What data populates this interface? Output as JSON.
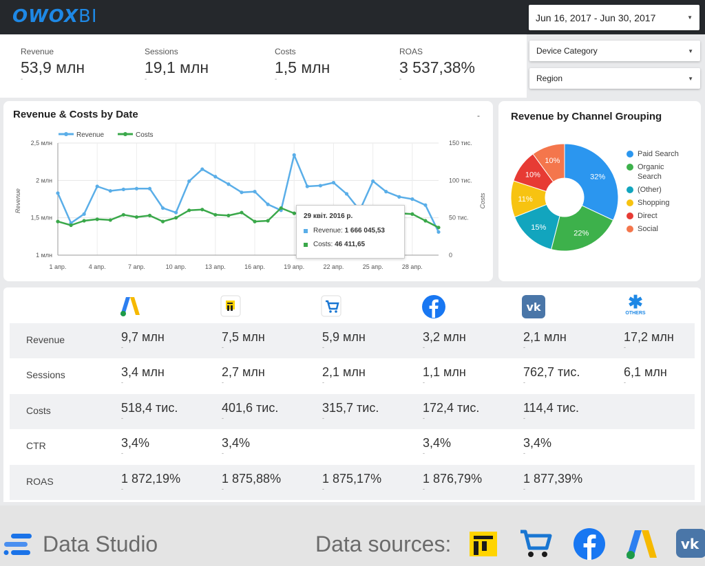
{
  "brand": {
    "name_part1": "OWOX",
    "name_part2": "BI"
  },
  "date_range": {
    "value": "Jun 16, 2017 - Jun 30, 2017"
  },
  "filters": {
    "device_category": "Device Category",
    "region": "Region"
  },
  "kpis": [
    {
      "label": "Revenue",
      "value": "53,9 млн",
      "delta": "-"
    },
    {
      "label": "Sessions",
      "value": "19,1 млн",
      "delta": "-"
    },
    {
      "label": "Costs",
      "value": "1,5 млн",
      "delta": "-"
    },
    {
      "label": "ROAS",
      "value": "3 537,38%",
      "delta": "-"
    }
  ],
  "line_chart": {
    "title": "Revenue & Costs by Date",
    "menu": "-",
    "legend": [
      "Revenue",
      "Costs"
    ],
    "ylabel_left": "Revenue",
    "ylabel_right": "Costs",
    "left_ticks": [
      "2,5 млн",
      "2 млн",
      "1,5 млн",
      "1 млн"
    ],
    "right_ticks": [
      "150 тис.",
      "100 тис.",
      "50 тис.",
      "0"
    ],
    "x_ticks": [
      "1 апр.",
      "4 апр.",
      "7 апр.",
      "10 апр.",
      "13 апр.",
      "16 апр.",
      "19 апр.",
      "22 апр.",
      "25 апр.",
      "28 апр."
    ],
    "tooltip": {
      "date": "29 квіт. 2016 р.",
      "revenue_label": "Revenue: ",
      "revenue_value": "1 666 045,53",
      "costs_label": "Costs: ",
      "costs_value": "46 411,65"
    }
  },
  "pie_chart": {
    "title": "Revenue by Channel Grouping",
    "legend": [
      "Paid Search",
      "Organic Search",
      "(Other)",
      "Shopping",
      "Direct",
      "Social"
    ]
  },
  "table": {
    "row_labels": [
      "Revenue",
      "Sessions",
      "Costs",
      "CTR",
      "ROAS"
    ],
    "channel_icons": [
      "google-ads-icon",
      "yandex-market-icon",
      "shopping-cart-icon",
      "facebook-icon",
      "vk-icon",
      "others-icon"
    ],
    "others_label": "OTHERS",
    "values": [
      [
        "9,7 млн",
        "7,5 млн",
        "5,9 млн",
        "3,2 млн",
        "2,1 млн",
        "17,2 млн"
      ],
      [
        "3,4 млн",
        "2,7 млн",
        "2,1 млн",
        "1,1 млн",
        "762,7 тис.",
        "6,1 млн"
      ],
      [
        "518,4 тис.",
        "401,6 тис.",
        "315,7 тис.",
        "172,4 тис.",
        "114,4 тис.",
        ""
      ],
      [
        "3,4%",
        "3,4%",
        "",
        "3,4%",
        "3,4%",
        ""
      ],
      [
        "1 872,19%",
        "1 875,88%",
        "1 875,17%",
        "1 876,79%",
        "1 877,39%",
        ""
      ]
    ],
    "dash": "-"
  },
  "footer": {
    "product": "Data Studio",
    "sources_label": "Data sources:"
  },
  "colors": {
    "revenue": "#5aaee8",
    "costs": "#3aa84a",
    "brand": "#1e88e5"
  },
  "chart_data": [
    {
      "type": "line",
      "title": "Revenue & Costs by Date",
      "x": [
        "1 апр.",
        "2 апр.",
        "3 апр.",
        "4 апр.",
        "5 апр.",
        "6 апр.",
        "7 апр.",
        "8 апр.",
        "9 апр.",
        "10 апр.",
        "11 апр.",
        "12 апр.",
        "13 апр.",
        "14 апр.",
        "15 апр.",
        "16 апр.",
        "17 апр.",
        "18 апр.",
        "19 апр.",
        "20 апр.",
        "21 апр.",
        "22 апр.",
        "23 апр.",
        "24 апр.",
        "25 апр.",
        "26 апр.",
        "27 апр.",
        "28 апр.",
        "29 апр.",
        "30 апр."
      ],
      "series": [
        {
          "name": "Revenue",
          "axis": "left",
          "values": [
            1.83,
            1.43,
            1.55,
            1.92,
            1.86,
            1.88,
            1.89,
            1.89,
            1.63,
            1.57,
            1.99,
            2.15,
            2.05,
            1.95,
            1.84,
            1.85,
            1.68,
            1.6,
            2.34,
            1.92,
            1.93,
            1.97,
            1.82,
            1.6,
            1.99,
            1.85,
            1.78,
            1.75,
            1.67,
            1.31
          ]
        },
        {
          "name": "Costs",
          "axis": "right",
          "values": [
            45,
            40,
            46,
            48,
            47,
            54,
            51,
            53,
            45,
            50,
            60,
            61,
            54,
            53,
            57,
            45,
            46,
            63,
            56,
            55,
            57,
            58,
            53,
            52,
            56,
            55,
            56,
            55,
            46,
            37
          ]
        }
      ],
      "ylim_left": [
        1,
        2.5
      ],
      "ylim_right": [
        0,
        150
      ],
      "ylabel": "Revenue",
      "ylabel_right": "Costs",
      "legend": "top-left",
      "grid": true
    },
    {
      "type": "pie",
      "donut": true,
      "title": "Revenue by Channel Grouping",
      "categories": [
        "Paid Search",
        "Organic Search",
        "(Other)",
        "Shopping",
        "Direct",
        "Social"
      ],
      "values": [
        32,
        22,
        15,
        11,
        10,
        10
      ],
      "labels": [
        "32%",
        "22%",
        "15%",
        "11%",
        "10%",
        "10%"
      ],
      "colors": [
        "#2b96ef",
        "#3db14b",
        "#12a5be",
        "#f7c311",
        "#e73b34",
        "#f4764c"
      ],
      "legend": "right"
    }
  ]
}
